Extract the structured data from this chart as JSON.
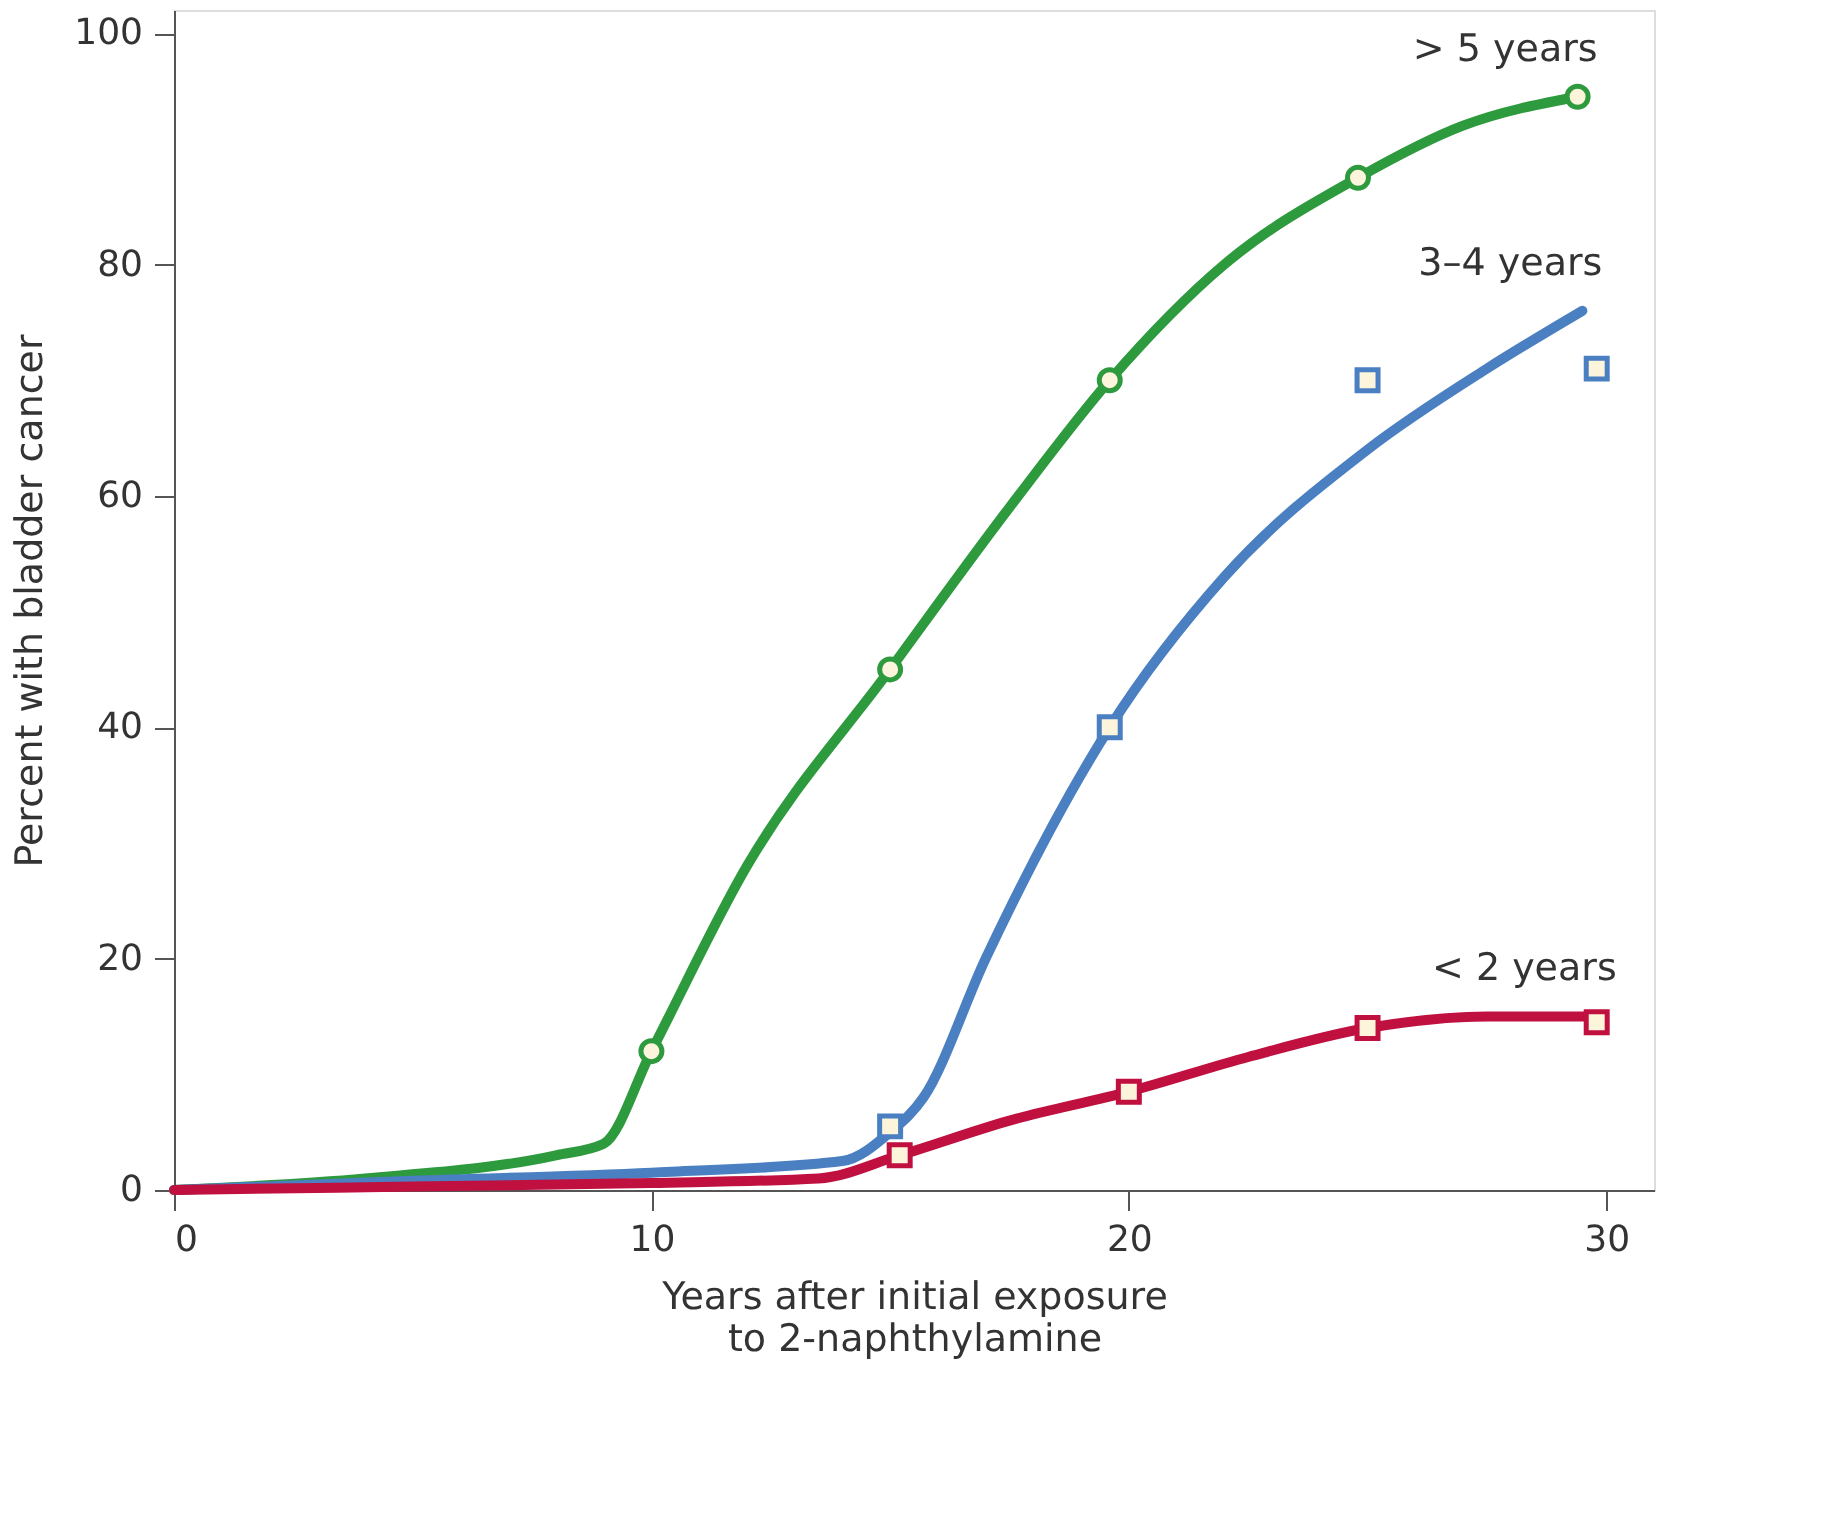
{
  "chart_data": {
    "type": "line",
    "xlabel": "Years after initial exposure\nto 2-naphthylamine",
    "ylabel": "Percent with bladder cancer",
    "xlim": [
      0,
      31
    ],
    "xticks": [
      0,
      10,
      20,
      30
    ],
    "ylim": [
      0,
      102
    ],
    "yticks": [
      0,
      20,
      40,
      60,
      80,
      100
    ],
    "series": [
      {
        "name": "> 5 years",
        "color": "#2e9a3e",
        "marker": "none",
        "x": [
          0,
          4,
          8,
          9,
          10,
          12,
          15,
          17.5,
          19.6,
          22,
          24.8,
          27,
          29.4
        ],
        "values": [
          0,
          1,
          3,
          4,
          12,
          28,
          45,
          59,
          70,
          80,
          87.5,
          92,
          94.5
        ]
      },
      {
        "name": "3–4 years",
        "color": "#4a7fc1",
        "marker": "none",
        "x": [
          0,
          5,
          10,
          14,
          15,
          15.7,
          17,
          19.6,
          22,
          25,
          27.5,
          29.5
        ],
        "values": [
          0,
          0.8,
          1.5,
          2.5,
          5,
          8,
          20,
          40,
          53,
          64,
          71,
          76
        ]
      },
      {
        "name": "< 2 years",
        "color": "#c0103f",
        "marker": "none",
        "x": [
          0,
          5,
          10,
          13.5,
          15.2,
          17.5,
          20,
          22.5,
          25,
          27.5,
          29.8
        ],
        "values": [
          0,
          0.3,
          0.6,
          1,
          3,
          6,
          8.5,
          11.5,
          14,
          15,
          15
        ]
      },
      {
        "color": "#2e9a3e",
        "type": "scatter",
        "marker": "circle",
        "x": [
          10,
          15,
          19.6,
          24.8,
          29.4
        ],
        "values": [
          12,
          45,
          70,
          87.5,
          94.5
        ]
      },
      {
        "color": "#4a7fc1",
        "type": "scatter",
        "marker": "square",
        "x": [
          15,
          19.6,
          25,
          29.8
        ],
        "values": [
          5.5,
          40,
          70,
          71
        ]
      },
      {
        "color": "#c0103f",
        "type": "scatter",
        "marker": "square",
        "x": [
          15.2,
          20,
          25,
          29.8
        ],
        "values": [
          3,
          8.5,
          14,
          14.5
        ]
      }
    ]
  }
}
